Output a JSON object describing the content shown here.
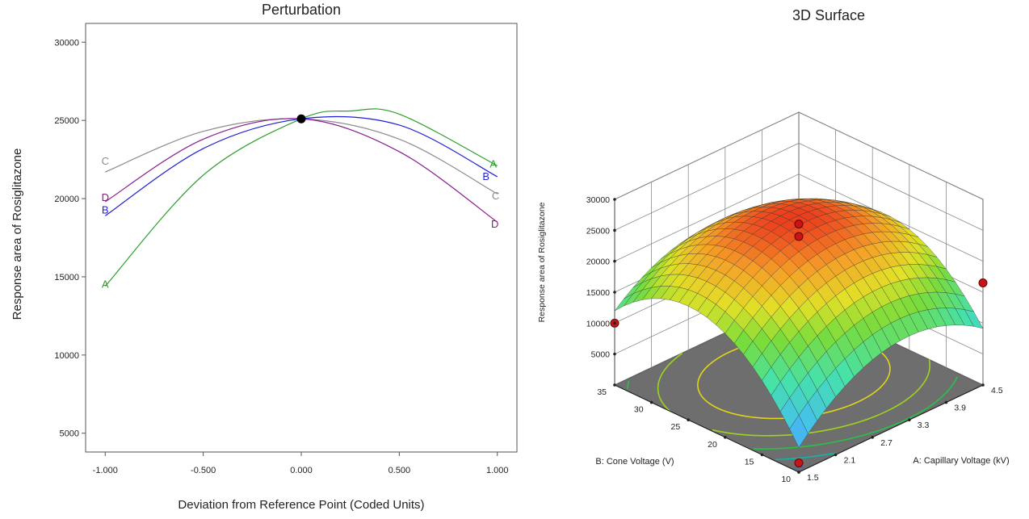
{
  "chart_data": [
    {
      "type": "line",
      "title": "Perturbation",
      "xlabel": "Deviation from Reference Point (Coded Units)",
      "ylabel": "Response area of Rosiglitazone",
      "xlim": [
        -1.1,
        1.1
      ],
      "ylim": [
        3800,
        31200
      ],
      "x_ticks": [
        "-1.000",
        "-0.500",
        "0.000",
        "0.500",
        "1.000"
      ],
      "y_ticks": [
        "5000",
        "10000",
        "15000",
        "20000",
        "25000",
        "30000"
      ],
      "reference_point": {
        "x": 0,
        "y": 25100
      },
      "series": [
        {
          "name": "A",
          "color": "#2ca02c",
          "x": [
            -1,
            -0.5,
            0,
            0.25,
            0.5,
            1
          ],
          "y": [
            14400,
            21500,
            25100,
            25600,
            25400,
            22100
          ]
        },
        {
          "name": "B",
          "color": "#1f1fd6",
          "x": [
            -1,
            -0.5,
            0,
            0.5,
            1
          ],
          "y": [
            18900,
            23200,
            25100,
            24700,
            21400
          ]
        },
        {
          "name": "C",
          "color": "#8c8c8c",
          "x": [
            -1,
            -0.5,
            0,
            0.5,
            1
          ],
          "y": [
            21700,
            24300,
            25100,
            23800,
            20300
          ]
        },
        {
          "name": "D",
          "color": "#8b1a8b",
          "x": [
            -1,
            -0.5,
            0,
            0.5,
            1
          ],
          "y": [
            19800,
            23800,
            25100,
            23000,
            18500
          ]
        }
      ],
      "grid": false
    },
    {
      "type": "surface3d",
      "title": "3D Surface",
      "xlabel": "A: Capillary Voltage (kV)",
      "ylabel": "B: Cone Voltage  (V)",
      "zlabel": "Response area of Rosiglitazone",
      "x_ticks": [
        "1.5",
        "2.1",
        "2.7",
        "3.3",
        "3.9",
        "4.5"
      ],
      "y_ticks": [
        "10",
        "15",
        "20",
        "25",
        "30",
        "35"
      ],
      "z_ticks": [
        "5000",
        "10000",
        "15000",
        "20000",
        "25000",
        "30000"
      ],
      "xlim": [
        1.5,
        4.5
      ],
      "ylim": [
        10,
        35
      ],
      "zlim": [
        0,
        30000
      ],
      "surface": {
        "peak_x": 3.1,
        "peak_y": 24,
        "peak_z": 26000,
        "grid_n": 20
      },
      "design_points": [
        {
          "x": 1.5,
          "y": 10,
          "z": 1500
        },
        {
          "x": 3.0,
          "y": 22.5,
          "z": 26000
        },
        {
          "x": 3.0,
          "y": 22.5,
          "z": 24000
        },
        {
          "x": 1.5,
          "y": 35,
          "z": 10000
        },
        {
          "x": 4.5,
          "y": 10,
          "z": 16500
        }
      ],
      "contour_colors": [
        "#2a6fd6",
        "#12b5a9",
        "#27c24a",
        "#9fd41c",
        "#e0d51a"
      ],
      "floor_color": "#6e6e6e"
    }
  ]
}
